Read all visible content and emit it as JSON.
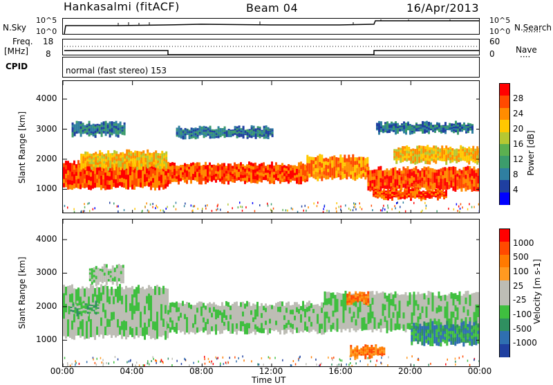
{
  "header": {
    "station": "Hankasalmi (fitACF)",
    "beam": "Beam 04",
    "date": "16/Apr/2013"
  },
  "strips": {
    "nsky_label": "N.Sky",
    "nsky_ticks": [
      "10^5",
      "10^0"
    ],
    "nsearch_label": "N.Search",
    "nsearch_ticks": [
      "10^5",
      "10^0"
    ],
    "freq_label": "Freq.",
    "freq_unit": "[MHz]",
    "freq_ticks": [
      "18",
      "8"
    ],
    "nave_label": "Nave",
    "nave_ticks": [
      "60",
      "0"
    ],
    "cpid_label": "CPID",
    "cpid_text": "normal (fast stereo) 153"
  },
  "chart_data": [
    {
      "type": "heatmap",
      "name": "power",
      "ylabel": "Slant Range [km]",
      "yticks": [
        "4000",
        "3000",
        "2000",
        "1000"
      ],
      "ylim": [
        180,
        4600
      ],
      "xlim_hours": [
        0,
        24
      ],
      "colorbar_label": "Power [dB]",
      "colorbar_ticks": [
        "28",
        "24",
        "20",
        "16",
        "12",
        "8",
        "4"
      ],
      "colorbar_colors": [
        "#0000ff",
        "#1f3fa0",
        "#2f7fa0",
        "#3c9c6c",
        "#5cb050",
        "#b6c832",
        "#ffc800",
        "#ff8c00",
        "#ff4a00",
        "#ff0000"
      ],
      "bands": [
        {
          "start_h": 0.0,
          "end_h": 6.0,
          "lo": 1050,
          "hi": 1900,
          "level": 8
        },
        {
          "start_h": 1.0,
          "end_h": 6.0,
          "lo": 1700,
          "hi": 2250,
          "level": 6
        },
        {
          "start_h": 6.0,
          "end_h": 14.0,
          "lo": 1250,
          "hi": 1850,
          "level": 8
        },
        {
          "start_h": 14.0,
          "end_h": 17.5,
          "lo": 1350,
          "hi": 2100,
          "level": 7
        },
        {
          "start_h": 17.5,
          "end_h": 24.0,
          "lo": 1000,
          "hi": 1700,
          "level": 8
        },
        {
          "start_h": 17.8,
          "end_h": 22.0,
          "lo": 700,
          "hi": 1000,
          "level": 8
        },
        {
          "start_h": 19.0,
          "end_h": 24.0,
          "lo": 1900,
          "hi": 2400,
          "level": 6
        },
        {
          "start_h": 0.5,
          "end_h": 3.5,
          "lo": 2800,
          "hi": 3200,
          "level": 2
        },
        {
          "start_h": 6.5,
          "end_h": 12.0,
          "lo": 2750,
          "hi": 3050,
          "level": 2
        },
        {
          "start_h": 18.0,
          "end_h": 23.5,
          "lo": 2900,
          "hi": 3200,
          "level": 2
        }
      ]
    },
    {
      "type": "heatmap",
      "name": "velocity",
      "ylabel": "Slant Range [km]",
      "yticks": [
        "4000",
        "3000",
        "2000",
        "1000"
      ],
      "ylim": [
        180,
        4600
      ],
      "xlim_hours": [
        0,
        24
      ],
      "xticks": [
        "00:00",
        "04:00",
        "08:00",
        "12:00",
        "16:00",
        "20:00",
        "00:00"
      ],
      "xlabel": "Time UT",
      "colorbar_label": "Velocity [m s-1]",
      "colorbar_ticks": [
        "1000",
        "500",
        "100",
        "25",
        "-25",
        "-100",
        "-500",
        "-1000"
      ],
      "colorbar_colors": [
        "#2040a0",
        "#2f6fb0",
        "#2f8f60",
        "#3fbf3f",
        "#bdbdb5",
        "#bdbdb5",
        "#ff9a20",
        "#ff7a00",
        "#ff4a00",
        "#ff0000"
      ],
      "bands": [
        {
          "start_h": 0.0,
          "end_h": 6.0,
          "lo": 1100,
          "hi": 2600,
          "level": 4
        },
        {
          "start_h": 6.0,
          "end_h": 15.0,
          "lo": 1250,
          "hi": 2100,
          "level": 4
        },
        {
          "start_h": 15.0,
          "end_h": 24.0,
          "lo": 1300,
          "hi": 2400,
          "level": 4
        },
        {
          "start_h": 16.5,
          "end_h": 18.5,
          "lo": 500,
          "hi": 800,
          "level": 7
        },
        {
          "start_h": 16.3,
          "end_h": 17.5,
          "lo": 2100,
          "hi": 2400,
          "level": 7
        },
        {
          "start_h": 20.0,
          "end_h": 24.0,
          "lo": 900,
          "hi": 1500,
          "level": 2
        },
        {
          "start_h": 0.3,
          "end_h": 2.0,
          "lo": 1800,
          "hi": 2100,
          "level": 3
        },
        {
          "start_h": 1.5,
          "end_h": 3.5,
          "lo": 2700,
          "hi": 3200,
          "level": 4
        }
      ]
    }
  ]
}
